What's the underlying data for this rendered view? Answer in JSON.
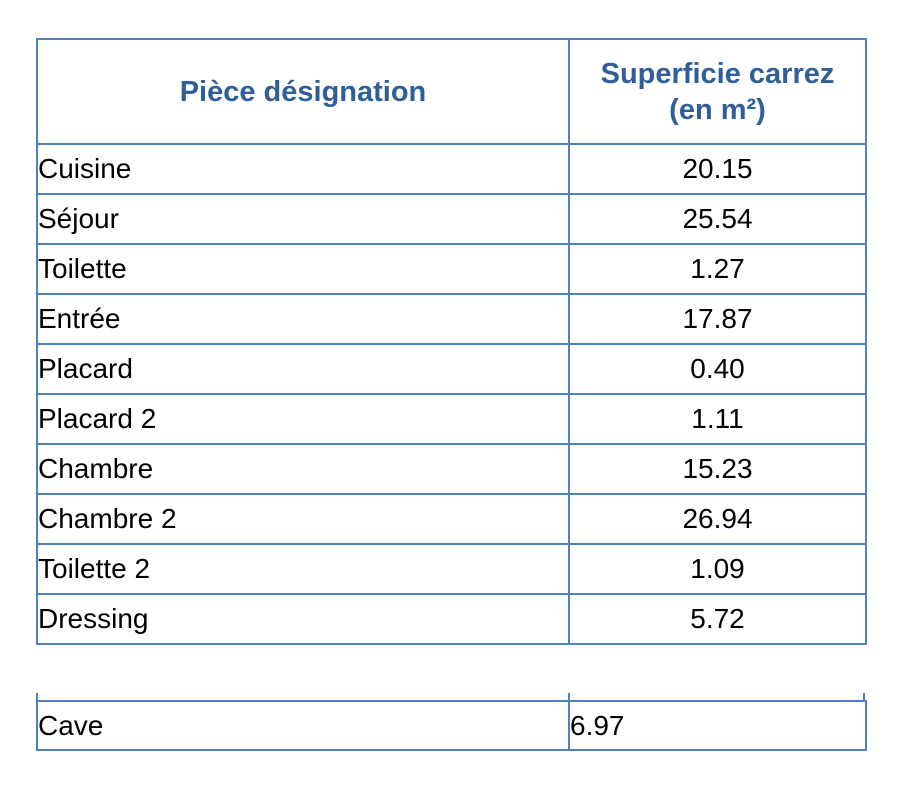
{
  "colors": {
    "border_blue": "#4F81BD",
    "header_text_blue": "#2F5F96",
    "body_text": "#000000",
    "background": "#FFFFFF"
  },
  "main_table": {
    "header": {
      "col1": "Pièce désignation",
      "col2_line1": "Superficie carrez",
      "col2_line2": "(en m²)"
    },
    "rows": [
      {
        "piece": "Cuisine",
        "superficie": "20.15"
      },
      {
        "piece": "Séjour",
        "superficie": "25.54"
      },
      {
        "piece": "Toilette",
        "superficie": "1.27"
      },
      {
        "piece": "Entrée",
        "superficie": "17.87"
      },
      {
        "piece": "Placard",
        "superficie": "0.40"
      },
      {
        "piece": "Placard 2",
        "superficie": "1.11"
      },
      {
        "piece": "Chambre",
        "superficie": "15.23"
      },
      {
        "piece": "Chambre 2",
        "superficie": "26.94"
      },
      {
        "piece": "Toilette 2",
        "superficie": "1.09"
      },
      {
        "piece": "Dressing",
        "superficie": "5.72"
      }
    ]
  },
  "annex_table": {
    "rows": [
      {
        "piece": "Cave",
        "superficie": "6.97"
      }
    ]
  }
}
